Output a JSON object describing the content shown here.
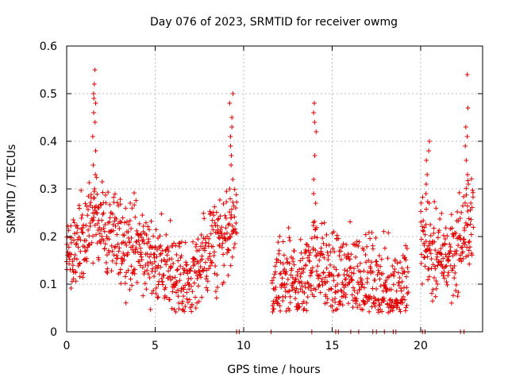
{
  "chart_data": {
    "type": "scatter",
    "title": "Day 076 of 2023, SRMTID for receiver owmg",
    "xlabel": "GPS time / hours",
    "ylabel": "SRMTID / TECUs",
    "xlim": [
      0,
      23.5
    ],
    "ylim": [
      0,
      0.6
    ],
    "xticks": [
      0,
      5,
      10,
      15,
      20
    ],
    "yticks": [
      0,
      0.1,
      0.2,
      0.3,
      0.4,
      0.5,
      0.6
    ],
    "xtick_labels": [
      "0",
      "5",
      "10",
      "15",
      "20"
    ],
    "ytick_labels": [
      "0",
      "0.1",
      "0.2",
      "0.3",
      "0.4",
      "0.5",
      "0.6"
    ],
    "grid": true,
    "marker": "+",
    "series_color": "#e00000",
    "series": [
      {
        "name": "SRMTID",
        "segments": [
          {
            "t0": 0.0,
            "t1": 9.6,
            "spacing": 0.03,
            "profile": [
              [
                0.0,
                0.18
              ],
              [
                1.0,
                0.17
              ],
              [
                1.5,
                0.25
              ],
              [
                2.5,
                0.2
              ],
              [
                4.0,
                0.18
              ],
              [
                5.0,
                0.15
              ],
              [
                6.0,
                0.12
              ],
              [
                7.0,
                0.1
              ],
              [
                8.0,
                0.17
              ],
              [
                9.0,
                0.2
              ],
              [
                9.6,
                0.22
              ]
            ]
          },
          {
            "t0": 11.6,
            "t1": 13.5,
            "spacing": 0.03,
            "profile": [
              [
                11.6,
                0.09
              ],
              [
                12.5,
                0.11
              ],
              [
                13.5,
                0.1
              ]
            ]
          },
          {
            "t0": 13.5,
            "t1": 19.3,
            "spacing": 0.03,
            "profile": [
              [
                13.5,
                0.12
              ],
              [
                14.0,
                0.16
              ],
              [
                15.0,
                0.11
              ],
              [
                16.5,
                0.12
              ],
              [
                17.5,
                0.1
              ],
              [
                18.5,
                0.08
              ],
              [
                19.3,
                0.1
              ]
            ]
          },
          {
            "t0": 20.0,
            "t1": 23.0,
            "spacing": 0.03,
            "profile": [
              [
                20.0,
                0.2
              ],
              [
                21.0,
                0.15
              ],
              [
                22.0,
                0.17
              ],
              [
                23.0,
                0.25
              ]
            ]
          }
        ],
        "peaks": [
          {
            "t": 1.55,
            "values": [
              0.55,
              0.52,
              0.5,
              0.49,
              0.48,
              0.46,
              0.44,
              0.41,
              0.38,
              0.35,
              0.33,
              0.3
            ]
          },
          {
            "t": 9.3,
            "values": [
              0.5,
              0.48,
              0.45,
              0.43,
              0.41,
              0.39,
              0.37,
              0.35,
              0.32,
              0.3
            ]
          },
          {
            "t": 14.0,
            "values": [
              0.48,
              0.46,
              0.44,
              0.42,
              0.37,
              0.32,
              0.29,
              0.27
            ]
          },
          {
            "t": 20.4,
            "values": [
              0.4,
              0.38,
              0.36,
              0.33,
              0.31,
              0.29,
              0.27
            ]
          },
          {
            "t": 22.6,
            "values": [
              0.54,
              0.47,
              0.43,
              0.41,
              0.39,
              0.36,
              0.33,
              0.31
            ]
          }
        ],
        "zero_values_x": [
          9.6,
          9.75,
          11.55,
          13.85,
          15.2,
          15.35,
          16.05,
          16.5,
          17.3,
          17.5,
          17.95,
          18.45,
          18.6,
          20.1,
          20.25,
          22.25,
          22.45
        ]
      }
    ]
  }
}
